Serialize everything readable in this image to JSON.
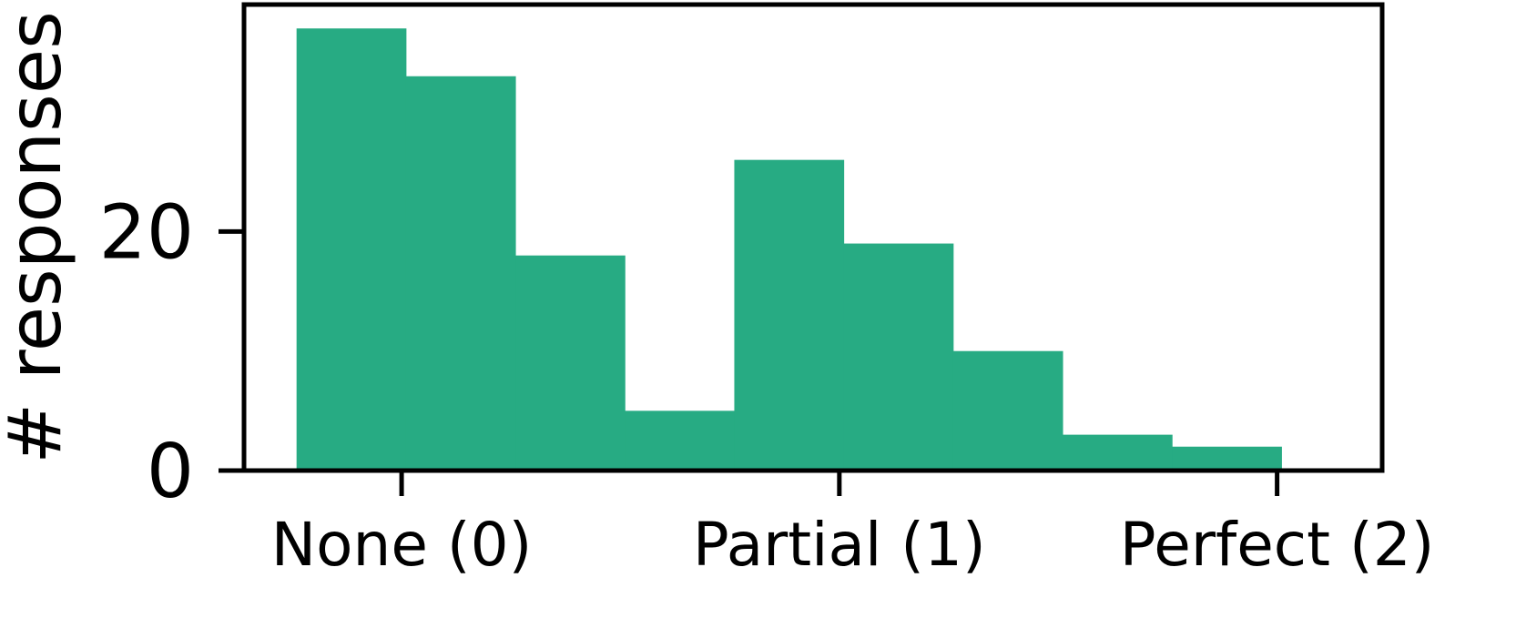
{
  "chart_data": {
    "type": "bar",
    "histogram": true,
    "bins": [
      {
        "x0": -0.24,
        "x1": 0.01,
        "count": 37
      },
      {
        "x0": 0.01,
        "x1": 0.26,
        "count": 33
      },
      {
        "x0": 0.26,
        "x1": 0.51,
        "count": 18
      },
      {
        "x0": 0.51,
        "x1": 0.76,
        "count": 5
      },
      {
        "x0": 0.76,
        "x1": 1.01,
        "count": 26
      },
      {
        "x0": 1.01,
        "x1": 1.26,
        "count": 19
      },
      {
        "x0": 1.26,
        "x1": 1.51,
        "count": 10
      },
      {
        "x0": 1.51,
        "x1": 1.76,
        "count": 3
      },
      {
        "x0": 1.76,
        "x1": 2.01,
        "count": 2
      }
    ],
    "xlim": [
      -0.36,
      2.24
    ],
    "ylim": [
      0,
      39
    ],
    "xticks": [
      0,
      1,
      2
    ],
    "xtick_labels": [
      "None (0)",
      "Partial (1)",
      "Perfect (2)"
    ],
    "yticks": [
      0,
      20
    ],
    "ytick_labels": [
      "0",
      "20"
    ],
    "ylabel": "# responses",
    "bar_color": "#27ab83",
    "grid": false
  }
}
